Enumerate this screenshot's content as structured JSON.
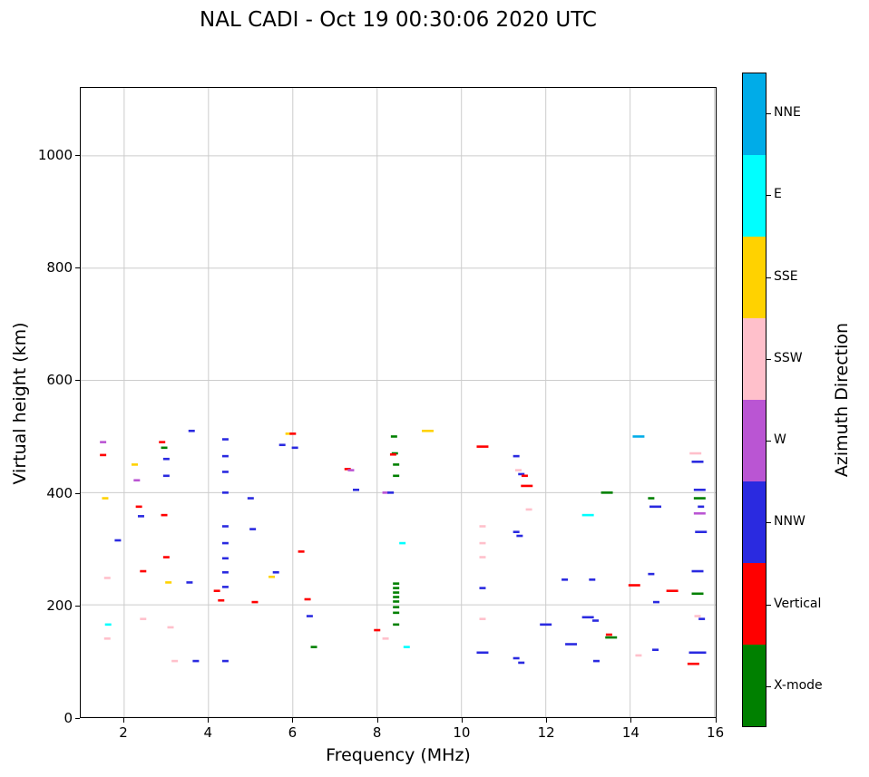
{
  "title": "NAL CADI - Oct 19 00:30:06 2020 UTC",
  "chart_data": {
    "type": "scatter",
    "title": "NAL CADI - Oct 19 00:30:06 2020 UTC",
    "xlabel": "Frequency (MHz)",
    "ylabel": "Virtual height (km)",
    "xlim": [
      0.97,
      16.03
    ],
    "ylim": [
      0,
      1121
    ],
    "xticks": [
      2,
      4,
      6,
      8,
      10,
      12,
      14,
      16
    ],
    "yticks": [
      0,
      200,
      400,
      600,
      800,
      1000
    ],
    "grid": true,
    "marker": "horizontal_dash",
    "colorbar": {
      "label": "Azimuth Direction",
      "categories": [
        {
          "label": "X-mode",
          "color": "#008000"
        },
        {
          "label": "Vertical",
          "color": "#ff0000"
        },
        {
          "label": "NNW",
          "color": "#2a2ae0"
        },
        {
          "label": "W",
          "color": "#ba55d3"
        },
        {
          "label": "SSW",
          "color": "#ffc0cb"
        },
        {
          "label": "SSE",
          "color": "#ffd200"
        },
        {
          "label": "E",
          "color": "#00ffff"
        },
        {
          "label": "NNE",
          "color": "#00ace8"
        }
      ]
    },
    "points": [
      [
        1.5,
        490,
        "W"
      ],
      [
        1.5,
        467,
        "Vertical"
      ],
      [
        1.55,
        390,
        "SSE"
      ],
      [
        1.6,
        248,
        "SSW"
      ],
      [
        1.62,
        165,
        "E"
      ],
      [
        1.6,
        140,
        "SSW"
      ],
      [
        1.85,
        315,
        "NNW"
      ],
      [
        2.25,
        450,
        "SSE"
      ],
      [
        2.3,
        422,
        "W"
      ],
      [
        2.35,
        375,
        "Vertical"
      ],
      [
        2.4,
        358,
        "NNW"
      ],
      [
        2.45,
        260,
        "Vertical"
      ],
      [
        2.45,
        175,
        "SSW"
      ],
      [
        2.9,
        490,
        "Vertical"
      ],
      [
        2.95,
        480,
        "X-mode"
      ],
      [
        3.0,
        460,
        "NNW"
      ],
      [
        3.0,
        430,
        "NNW"
      ],
      [
        2.95,
        360,
        "Vertical"
      ],
      [
        3.0,
        285,
        "Vertical"
      ],
      [
        3.05,
        240,
        "SSE"
      ],
      [
        3.1,
        160,
        "SSW"
      ],
      [
        3.2,
        100,
        "SSW"
      ],
      [
        3.6,
        510,
        "NNW"
      ],
      [
        3.55,
        240,
        "NNW"
      ],
      [
        3.7,
        100,
        "NNW"
      ],
      [
        4.2,
        225,
        "Vertical"
      ],
      [
        4.3,
        208,
        "Vertical"
      ],
      [
        4.4,
        495,
        "NNW"
      ],
      [
        4.4,
        465,
        "NNW"
      ],
      [
        4.4,
        437,
        "NNW"
      ],
      [
        4.4,
        400,
        "NNW"
      ],
      [
        4.4,
        340,
        "NNW"
      ],
      [
        4.4,
        310,
        "NNW"
      ],
      [
        4.4,
        283,
        "NNW"
      ],
      [
        4.4,
        258,
        "NNW"
      ],
      [
        4.4,
        232,
        "NNW"
      ],
      [
        4.4,
        100,
        "NNW"
      ],
      [
        5.0,
        390,
        "NNW"
      ],
      [
        5.05,
        335,
        "NNW"
      ],
      [
        5.1,
        205,
        "Vertical"
      ],
      [
        5.5,
        250,
        "SSE"
      ],
      [
        5.6,
        258,
        "NNW"
      ],
      [
        5.75,
        485,
        "NNW"
      ],
      [
        5.9,
        505,
        "SSE"
      ],
      [
        6.0,
        505,
        "Vertical"
      ],
      [
        6.05,
        480,
        "NNW"
      ],
      [
        6.2,
        295,
        "Vertical"
      ],
      [
        6.35,
        210,
        "Vertical"
      ],
      [
        6.4,
        180,
        "NNW"
      ],
      [
        6.5,
        125,
        "X-mode"
      ],
      [
        7.3,
        442,
        "Vertical"
      ],
      [
        7.38,
        440,
        "W"
      ],
      [
        7.5,
        405,
        "NNW"
      ],
      [
        8.0,
        155,
        "Vertical"
      ],
      [
        8.2,
        140,
        "SSW"
      ],
      [
        8.2,
        400,
        "W"
      ],
      [
        8.32,
        400,
        "NNW"
      ],
      [
        8.4,
        500,
        "X-mode"
      ],
      [
        8.42,
        470,
        "X-mode"
      ],
      [
        8.38,
        468,
        "Vertical"
      ],
      [
        8.45,
        450,
        "X-mode"
      ],
      [
        8.45,
        430,
        "X-mode"
      ],
      [
        8.45,
        238,
        "X-mode"
      ],
      [
        8.45,
        230,
        "X-mode"
      ],
      [
        8.45,
        222,
        "X-mode"
      ],
      [
        8.45,
        214,
        "X-mode"
      ],
      [
        8.45,
        206,
        "X-mode"
      ],
      [
        8.45,
        196,
        "X-mode"
      ],
      [
        8.45,
        186,
        "X-mode"
      ],
      [
        8.45,
        165,
        "X-mode"
      ],
      [
        8.6,
        310,
        "E"
      ],
      [
        8.7,
        125,
        "E"
      ],
      [
        9.2,
        510,
        "SSE",
        2
      ],
      [
        10.5,
        482,
        "Vertical",
        2
      ],
      [
        10.5,
        340,
        "SSW"
      ],
      [
        10.5,
        310,
        "SSW"
      ],
      [
        10.5,
        285,
        "SSW"
      ],
      [
        10.5,
        230,
        "NNW"
      ],
      [
        10.5,
        175,
        "SSW"
      ],
      [
        10.5,
        115,
        "NNW",
        2
      ],
      [
        11.3,
        465,
        "NNW"
      ],
      [
        11.35,
        440,
        "SSW"
      ],
      [
        11.42,
        433,
        "NNW"
      ],
      [
        11.3,
        330,
        "NNW"
      ],
      [
        11.38,
        323,
        "NNW"
      ],
      [
        11.5,
        430,
        "Vertical"
      ],
      [
        11.55,
        412,
        "Vertical",
        2
      ],
      [
        11.6,
        370,
        "SSW"
      ],
      [
        11.3,
        105,
        "NNW"
      ],
      [
        11.42,
        97,
        "NNW"
      ],
      [
        12.0,
        165,
        "NNW",
        2
      ],
      [
        12.45,
        245,
        "NNW"
      ],
      [
        12.6,
        130,
        "NNW",
        2
      ],
      [
        13.0,
        360,
        "E",
        2
      ],
      [
        13.1,
        245,
        "NNW"
      ],
      [
        13.0,
        178,
        "NNW",
        2
      ],
      [
        13.18,
        172,
        "NNW"
      ],
      [
        13.2,
        100,
        "NNW"
      ],
      [
        13.45,
        400,
        "X-mode",
        2
      ],
      [
        13.5,
        147,
        "Vertical"
      ],
      [
        13.55,
        142,
        "X-mode",
        2
      ],
      [
        14.1,
        235,
        "Vertical",
        2
      ],
      [
        14.2,
        500,
        "NNE",
        2
      ],
      [
        14.2,
        110,
        "SSW"
      ],
      [
        14.5,
        390,
        "X-mode"
      ],
      [
        14.6,
        375,
        "NNW",
        2
      ],
      [
        14.5,
        255,
        "NNW"
      ],
      [
        14.62,
        205,
        "NNW"
      ],
      [
        14.6,
        120,
        "NNW"
      ],
      [
        15.0,
        225,
        "Vertical",
        2
      ],
      [
        15.55,
        470,
        "SSW",
        2
      ],
      [
        15.6,
        455,
        "NNW",
        2
      ],
      [
        15.65,
        405,
        "NNW",
        2
      ],
      [
        15.65,
        390,
        "X-mode",
        2
      ],
      [
        15.68,
        375,
        "NNW"
      ],
      [
        15.65,
        363,
        "W",
        2
      ],
      [
        15.68,
        330,
        "NNW",
        2
      ],
      [
        15.6,
        260,
        "NNW",
        2
      ],
      [
        15.6,
        220,
        "X-mode",
        2
      ],
      [
        15.6,
        180,
        "SSW"
      ],
      [
        15.7,
        175,
        "NNW"
      ],
      [
        15.6,
        115,
        "NNW",
        3
      ],
      [
        15.5,
        95,
        "Vertical",
        2
      ]
    ]
  }
}
